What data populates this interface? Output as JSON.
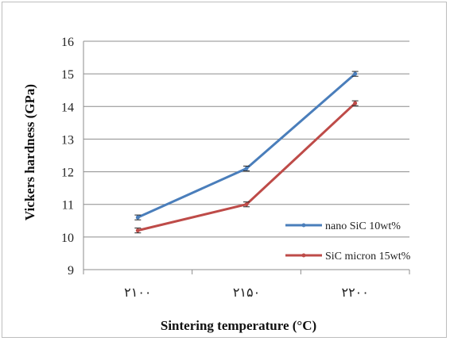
{
  "chart_data": {
    "type": "line",
    "categories": [
      "۲۱۰۰",
      "۲۱۵۰",
      "۲۲۰۰"
    ],
    "series": [
      {
        "name": "nano SiC 10wt%",
        "values": [
          10.6,
          12.1,
          15.0
        ],
        "color": "#4a7ebb",
        "error": 0.05
      },
      {
        "name": "SiC micron 15wt%",
        "values": [
          10.2,
          11.0,
          14.1
        ],
        "color": "#be4b48",
        "error": 0.05
      }
    ],
    "xlabel": "Sintering temperature (°C)",
    "ylabel": "Vickers hardness (GPa)",
    "ylim": [
      9,
      16
    ],
    "yticks": [
      "9",
      "10",
      "11",
      "12",
      "13",
      "14",
      "15",
      "16"
    ],
    "grid": true,
    "legend_position": "right"
  }
}
